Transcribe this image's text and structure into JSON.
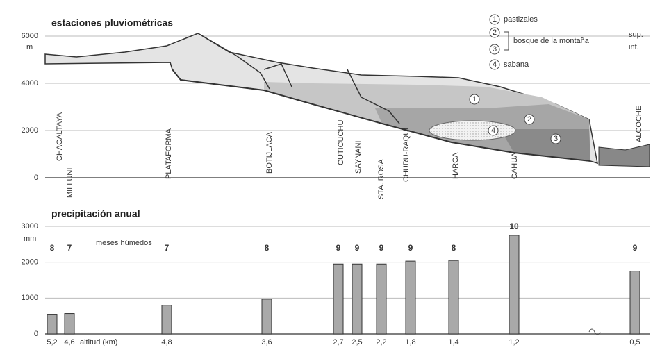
{
  "chart_data": [
    {
      "type": "profile",
      "title": "estaciones pluviométricas",
      "y_unit": "m",
      "ylim": [
        0,
        6000
      ],
      "yticks": [
        0,
        2000,
        4000,
        6000
      ],
      "grid": true,
      "stations": [
        "CHACALTAYA",
        "MILLUNI",
        "PLATAFORMA",
        "BOTIJLACA",
        "CUTICUCHU",
        "SAYNANI",
        "STA. ROSA",
        "CHURU-RAQUI",
        "HARCA",
        "CAHUA",
        "ALCOCHE"
      ],
      "legend": {
        "items": [
          {
            "key": "1",
            "label": "pastizales"
          },
          {
            "key": "2",
            "label": "sup."
          },
          {
            "key": "3",
            "label": "inf."
          },
          {
            "key": "4",
            "label": "sabana"
          }
        ],
        "group_label": "bosque de la montaña"
      }
    },
    {
      "type": "bar",
      "title": "precipitación anual",
      "y_unit": "mm",
      "ylim": [
        0,
        3000
      ],
      "yticks": [
        0,
        1000,
        2000,
        3000
      ],
      "grid": true,
      "color": "#a9a9a9",
      "x_label": "altitud (km)",
      "months_label": "meses húmedos",
      "categories": [
        "5,2",
        "4,6",
        "4,8",
        "3,6",
        "2,7",
        "2,5",
        "2,2",
        "1,8",
        "1,4",
        "1,2",
        "0,5"
      ],
      "values": [
        550,
        570,
        800,
        970,
        1950,
        1950,
        1950,
        2030,
        2050,
        2750,
        1750
      ],
      "humid_months": [
        8,
        7,
        7,
        8,
        9,
        9,
        9,
        9,
        8,
        10,
        9
      ]
    }
  ]
}
